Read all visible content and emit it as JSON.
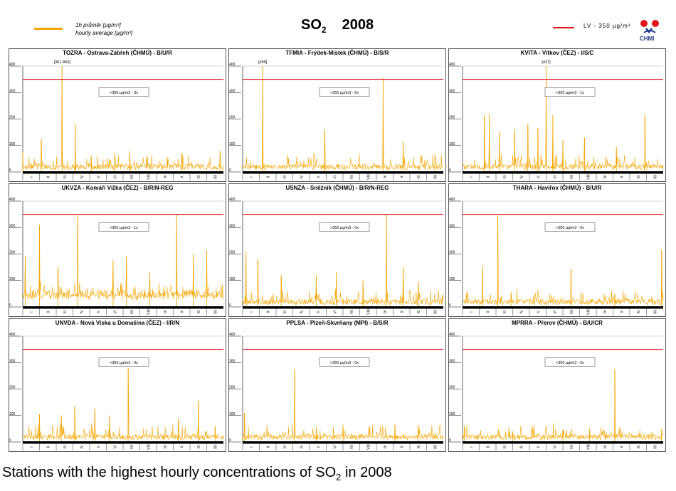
{
  "header": {
    "legend_series_line1": "1h průměr [µg/m³]",
    "legend_series_line2": "hourly average [µg/m³]",
    "title_pollutant": "SO",
    "title_subscript": "2",
    "title_year": "2008",
    "limit_legend": "LV - 350 µg/m³",
    "logo_text": "CHMI"
  },
  "caption": {
    "prefix": "Stations with the highest hourly concentrations of SO",
    "subscript": "2",
    "suffix": " in 2008"
  },
  "colors": {
    "series": "#f5a500",
    "limit": "#e0161c",
    "axis": "#000000",
    "panel_border": "#555555"
  },
  "chart_data": [
    {
      "type": "line",
      "title": "TOZRA - Ostrava-Zábřeh (ČHMÚ) - B/U/R",
      "ylim": [
        0,
        400
      ],
      "yticks": [
        0,
        100,
        200,
        300,
        400
      ],
      "categories": [
        "I",
        "II",
        "III",
        "IV",
        "V",
        "VI",
        "VII",
        "VIII",
        "IX",
        "X",
        "XI",
        "XII"
      ],
      "limit_value": 350,
      "exceedance_label": ">350 µg/m3 - 3x",
      "peak_label": "[361-860]",
      "peaks": [
        {
          "month": 0.0,
          "value": 75
        },
        {
          "month": 1.1,
          "value": 125
        },
        {
          "month": 2.35,
          "value": 400
        },
        {
          "month": 3.15,
          "value": 180
        },
        {
          "month": 4.1,
          "value": 60
        },
        {
          "month": 5.5,
          "value": 70
        },
        {
          "month": 6.4,
          "value": 80
        },
        {
          "month": 9.5,
          "value": 70
        },
        {
          "month": 11.8,
          "value": 80
        }
      ]
    },
    {
      "type": "line",
      "title": "TFMIA - Frýdek-Místek (ČHMÚ) - B/S/R",
      "ylim": [
        0,
        400
      ],
      "yticks": [
        0,
        100,
        200,
        300,
        400
      ],
      "categories": [
        "I",
        "II",
        "III",
        "IV",
        "V",
        "VI",
        "VII",
        "VIII",
        "IX",
        "X",
        "XI",
        "XII"
      ],
      "limit_value": 350,
      "exceedance_label": ">350 µg/m3 - 2x",
      "peak_label": "[486]",
      "peaks": [
        {
          "month": 1.2,
          "value": 400
        },
        {
          "month": 4.9,
          "value": 160
        },
        {
          "month": 8.4,
          "value": 355
        },
        {
          "month": 9.6,
          "value": 115
        },
        {
          "month": 11.5,
          "value": 65
        }
      ]
    },
    {
      "type": "line",
      "title": "KVITA - Vítkov (ČEZ) - I/S/C",
      "ylim": [
        0,
        400
      ],
      "yticks": [
        0,
        100,
        200,
        300,
        400
      ],
      "categories": [
        "I",
        "II",
        "III",
        "IV",
        "V",
        "VI",
        "VII",
        "VIII",
        "IX",
        "X",
        "XI",
        "XII"
      ],
      "limit_value": 350,
      "exceedance_label": ">350 µg/m3 - 1x",
      "peak_label": "[437]",
      "peaks": [
        {
          "month": 1.3,
          "value": 215
        },
        {
          "month": 1.6,
          "value": 220
        },
        {
          "month": 2.2,
          "value": 150
        },
        {
          "month": 3.1,
          "value": 160
        },
        {
          "month": 3.9,
          "value": 180
        },
        {
          "month": 4.5,
          "value": 165
        },
        {
          "month": 5.0,
          "value": 400
        },
        {
          "month": 5.4,
          "value": 215
        },
        {
          "month": 6.0,
          "value": 120
        },
        {
          "month": 7.3,
          "value": 130
        },
        {
          "month": 9.2,
          "value": 95
        },
        {
          "month": 10.9,
          "value": 215
        }
      ]
    },
    {
      "type": "line",
      "title": "UKVZA - Komáří Vížka (ČEZ) - B/R/N-REG",
      "ylim": [
        0,
        400
      ],
      "yticks": [
        0,
        100,
        200,
        300,
        400
      ],
      "categories": [
        "I",
        "II",
        "III",
        "IV",
        "V",
        "VI",
        "VII",
        "VIII",
        "IX",
        "X",
        "XI",
        "XII"
      ],
      "limit_value": 350,
      "exceedance_label": ">350 µg/m3 - 1x",
      "peak_label": "",
      "peaks": [
        {
          "month": 0.15,
          "value": 190
        },
        {
          "month": 1.0,
          "value": 310
        },
        {
          "month": 2.1,
          "value": 150
        },
        {
          "month": 3.3,
          "value": 345
        },
        {
          "month": 5.4,
          "value": 175
        },
        {
          "month": 6.2,
          "value": 190
        },
        {
          "month": 7.6,
          "value": 130
        },
        {
          "month": 9.2,
          "value": 350
        },
        {
          "month": 10.2,
          "value": 200
        },
        {
          "month": 11.0,
          "value": 215
        }
      ]
    },
    {
      "type": "line",
      "title": "USNZA - Sněžník (ČHMÚ) - B/R/N-REG",
      "ylim": [
        0,
        400
      ],
      "yticks": [
        0,
        100,
        200,
        300,
        400
      ],
      "categories": [
        "I",
        "II",
        "III",
        "IV",
        "V",
        "VI",
        "VII",
        "VIII",
        "IX",
        "X",
        "XI",
        "XII"
      ],
      "limit_value": 350,
      "exceedance_label": ">350 µg/m3 - 0x",
      "peak_label": "",
      "peaks": [
        {
          "month": 0.2,
          "value": 210
        },
        {
          "month": 0.9,
          "value": 180
        },
        {
          "month": 2.3,
          "value": 120
        },
        {
          "month": 4.4,
          "value": 120
        },
        {
          "month": 5.6,
          "value": 130
        },
        {
          "month": 7.2,
          "value": 100
        },
        {
          "month": 8.6,
          "value": 350
        },
        {
          "month": 9.6,
          "value": 150
        },
        {
          "month": 10.5,
          "value": 95
        }
      ]
    },
    {
      "type": "line",
      "title": "THARA - Havířov (ČHMÚ) - B/U/R",
      "ylim": [
        0,
        400
      ],
      "yticks": [
        0,
        100,
        200,
        300,
        400
      ],
      "categories": [
        "I",
        "II",
        "III",
        "IV",
        "V",
        "VI",
        "VII",
        "VIII",
        "IX",
        "X",
        "XI",
        "XII"
      ],
      "limit_value": 350,
      "exceedance_label": ">350 µg/m3 - 0x",
      "peak_label": "",
      "peaks": [
        {
          "month": 1.2,
          "value": 155
        },
        {
          "month": 2.1,
          "value": 345
        },
        {
          "month": 2.9,
          "value": 55
        },
        {
          "month": 6.5,
          "value": 145
        },
        {
          "month": 9.1,
          "value": 50
        },
        {
          "month": 11.9,
          "value": 215
        }
      ]
    },
    {
      "type": "line",
      "title": "UNVDA - Nová Víska u Domašína (ČEZ) - I/R/N",
      "ylim": [
        0,
        400
      ],
      "yticks": [
        0,
        100,
        200,
        300,
        400
      ],
      "categories": [
        "I",
        "II",
        "III",
        "IV",
        "V",
        "VI",
        "VII",
        "VIII",
        "IX",
        "X",
        "XI",
        "XII"
      ],
      "limit_value": 350,
      "exceedance_label": ">350 µg/m3 - 0x",
      "peak_label": "",
      "peaks": [
        {
          "month": 1.0,
          "value": 105
        },
        {
          "month": 2.3,
          "value": 100
        },
        {
          "month": 3.1,
          "value": 135
        },
        {
          "month": 4.3,
          "value": 125
        },
        {
          "month": 5.2,
          "value": 100
        },
        {
          "month": 6.3,
          "value": 280
        },
        {
          "month": 9.3,
          "value": 90
        },
        {
          "month": 10.5,
          "value": 155
        },
        {
          "month": 11.5,
          "value": 60
        }
      ]
    },
    {
      "type": "line",
      "title": "PPLSA - Plzeň-Skvrňany (MPI) - B/S/R",
      "ylim": [
        0,
        400
      ],
      "yticks": [
        0,
        100,
        200,
        300,
        400
      ],
      "categories": [
        "I",
        "II",
        "III",
        "IV",
        "V",
        "VI",
        "VII",
        "VIII",
        "IX",
        "X",
        "XI",
        "XII"
      ],
      "limit_value": 350,
      "exceedance_label": ">350 µg/m3 - 0x",
      "peak_label": "",
      "peaks": [
        {
          "month": 0.1,
          "value": 110
        },
        {
          "month": 3.1,
          "value": 275
        },
        {
          "month": 4.4,
          "value": 55
        },
        {
          "month": 6.0,
          "value": 65
        },
        {
          "month": 9.1,
          "value": 65
        },
        {
          "month": 10.5,
          "value": 65
        }
      ]
    },
    {
      "type": "line",
      "title": "MPRRA - Přerov (ČHMÚ) - B/U/CR",
      "ylim": [
        0,
        400
      ],
      "yticks": [
        0,
        100,
        200,
        300,
        400
      ],
      "categories": [
        "I",
        "II",
        "III",
        "IV",
        "V",
        "VI",
        "VII",
        "VIII",
        "IX",
        "X",
        "XI",
        "XII"
      ],
      "limit_value": 350,
      "exceedance_label": ">350 µg/m3 - 0x",
      "peak_label": "",
      "peaks": [
        {
          "month": 0.1,
          "value": 60
        },
        {
          "month": 3.0,
          "value": 40
        },
        {
          "month": 6.0,
          "value": 45
        },
        {
          "month": 7.6,
          "value": 50
        },
        {
          "month": 9.1,
          "value": 275
        },
        {
          "month": 11.9,
          "value": 50
        }
      ]
    }
  ]
}
